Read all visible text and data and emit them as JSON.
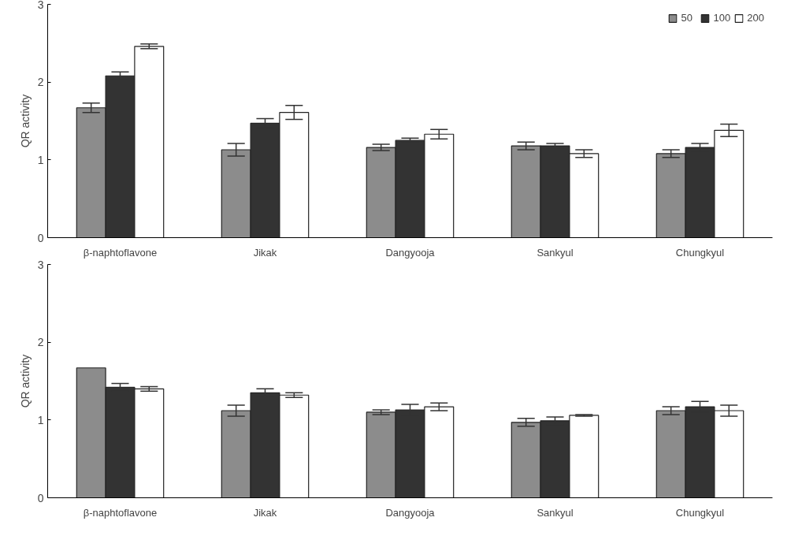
{
  "chart_data": [
    {
      "type": "bar",
      "ylabel": "QR activity",
      "categories": [
        "β-naphtoflavone",
        "Jikak",
        "Dangyooja",
        "Sankyul",
        "Chungkyul"
      ],
      "ylim": [
        0,
        3
      ],
      "yticks": [
        0,
        1,
        2,
        3
      ],
      "legend": "top right",
      "grid": false,
      "series": [
        {
          "name": "50",
          "color": "#8c8c8c",
          "values": [
            1.67,
            1.13,
            1.16,
            1.18,
            1.08
          ],
          "errors": [
            0.06,
            0.08,
            0.04,
            0.05,
            0.05
          ]
        },
        {
          "name": "100",
          "color": "#333333",
          "values": [
            2.08,
            1.47,
            1.25,
            1.18,
            1.16
          ],
          "errors": [
            0.05,
            0.06,
            0.03,
            0.03,
            0.05
          ]
        },
        {
          "name": "200",
          "color": "#ffffff",
          "values": [
            2.46,
            1.61,
            1.33,
            1.08,
            1.38
          ],
          "errors": [
            0.03,
            0.09,
            0.06,
            0.05,
            0.08
          ]
        }
      ]
    },
    {
      "type": "bar",
      "ylabel": "QR activity",
      "categories": [
        "β-naphtoflavone",
        "Jikak",
        "Dangyooja",
        "Sankyul",
        "Chungkyul"
      ],
      "ylim": [
        0,
        3
      ],
      "yticks": [
        0,
        1,
        2,
        3
      ],
      "grid": false,
      "series": [
        {
          "color": "#8c8c8c",
          "values": [
            1.67,
            1.12,
            1.1,
            0.97,
            1.12
          ],
          "errors": [
            null,
            0.07,
            0.03,
            0.05,
            0.05
          ]
        },
        {
          "color": "#333333",
          "values": [
            1.42,
            1.35,
            1.13,
            0.99,
            1.17
          ],
          "errors": [
            0.05,
            0.05,
            0.07,
            0.05,
            0.07
          ]
        },
        {
          "color": "#ffffff",
          "values": [
            1.4,
            1.32,
            1.17,
            1.06,
            1.12
          ],
          "errors": [
            0.03,
            0.03,
            0.05,
            0.01,
            0.07
          ]
        }
      ]
    }
  ]
}
